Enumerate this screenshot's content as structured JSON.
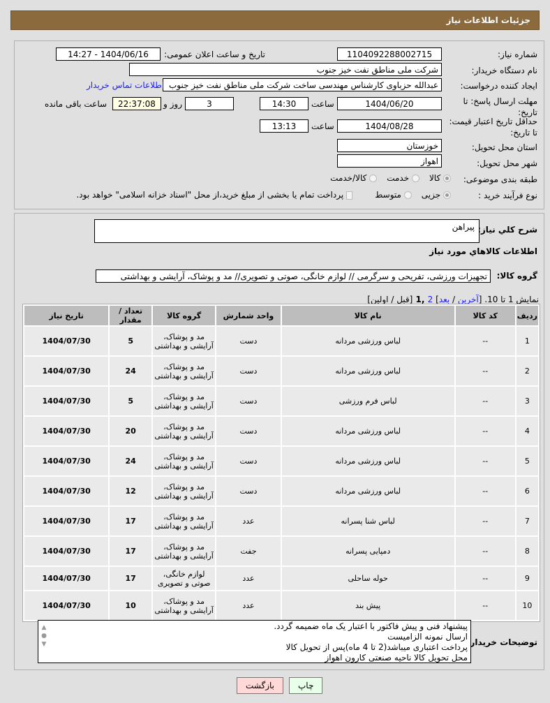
{
  "header": {
    "title": "جزئیات اطلاعات نیاز"
  },
  "form": {
    "need_number_label": "شماره نیاز:",
    "need_number": "1104092288002715",
    "announce_label": "تاریخ و ساعت اعلان عمومی:",
    "announce_value": "1404/06/16 - 14:27",
    "buyer_label": "نام دستگاه خریدار:",
    "buyer_value": "شرکت ملی مناطق نفت خیز جنوب",
    "creator_label": "ایجاد کننده درخواست:",
    "creator_value": "عبدالله حزباوی کارشناس مهندسی ساخت شرکت ملی مناطق نفت خیز جنوب",
    "contact_link": "اطلاعات تماس خریدار",
    "deadline_label": "مهلت ارسال پاسخ: تا تاریخ:",
    "deadline_date": "1404/06/20",
    "time_label": "ساعت",
    "deadline_time": "14:30",
    "days": "3",
    "days_label": "روز و",
    "remaining": "22:37:08",
    "remaining_label": "ساعت باقی مانده",
    "validity_label": "حداقل تاریخ اعتبار قیمت: تا تاریخ:",
    "validity_date": "1404/08/28",
    "validity_time": "13:13",
    "province_label": "استان محل تحویل:",
    "province": "خوزستان",
    "city_label": "شهر محل تحویل:",
    "city": "اهواز",
    "category_label": "طبقه بندی موضوعی:",
    "category_options": [
      "کالا",
      "خدمت",
      "کالا/خدمت"
    ],
    "process_label": "نوع فرآیند خرید :",
    "process_options": [
      "جزیی",
      "متوسط"
    ],
    "payment_note": "پرداخت تمام یا بخشی از مبلغ خرید،از محل \"اسناد خزانه اسلامی\" خواهد بود."
  },
  "summary": {
    "label": "شرح کلي نياز:",
    "value": "پیراهن"
  },
  "goods": {
    "title": "اطلاعات كالاهاي مورد نياز",
    "group_label": "گروه کالا:",
    "group_value": "تجهیزات ورزشی، تفریحی و سرگرمی // لوازم خانگی، صوتی و تصویری// مد و پوشاک، آرایشی و بهداشتی"
  },
  "pager": {
    "prefix": "نمایش 1 تا 10. [",
    "last": "آخرین",
    "sep": " / ",
    "next": "بعد",
    "close": "]",
    "page2": "2",
    "current": " ,1 ",
    "rest": "[قبل / اولین]"
  },
  "table": {
    "headers": [
      "ردیف",
      "کد کالا",
      "نام کالا",
      "واحد شمارش",
      "گروه کالا",
      "تعداد / مقدار",
      "تاریخ نیاز"
    ],
    "rows": [
      [
        "1",
        "--",
        "لباس ورزشی مردانه",
        "دست",
        "مد و پوشاک، آرایشی و بهداشتی",
        "5",
        "1404/07/30"
      ],
      [
        "2",
        "--",
        "لباس ورزشی مردانه",
        "دست",
        "مد و پوشاک، آرایشی و بهداشتی",
        "24",
        "1404/07/30"
      ],
      [
        "3",
        "--",
        "لباس فرم ورزشی",
        "دست",
        "مد و پوشاک، آرایشی و بهداشتی",
        "5",
        "1404/07/30"
      ],
      [
        "4",
        "--",
        "لباس ورزشی مردانه",
        "دست",
        "مد و پوشاک، آرایشی و بهداشتی",
        "20",
        "1404/07/30"
      ],
      [
        "5",
        "--",
        "لباس ورزشی مردانه",
        "دست",
        "مد و پوشاک، آرایشی و بهداشتی",
        "24",
        "1404/07/30"
      ],
      [
        "6",
        "--",
        "لباس ورزشی مردانه",
        "دست",
        "مد و پوشاک، آرایشی و بهداشتی",
        "12",
        "1404/07/30"
      ],
      [
        "7",
        "--",
        "لباس شنا پسرانه",
        "عدد",
        "مد و پوشاک، آرایشی و بهداشتی",
        "17",
        "1404/07/30"
      ],
      [
        "8",
        "--",
        "دمپایی پسرانه",
        "جفت",
        "مد و پوشاک، آرایشی و بهداشتی",
        "17",
        "1404/07/30"
      ],
      [
        "9",
        "--",
        "حوله ساحلی",
        "عدد",
        "لوازم خانگی، صوتی و تصویری",
        "17",
        "1404/07/30"
      ],
      [
        "10",
        "--",
        "پیش بند",
        "عدد",
        "مد و پوشاک، آرایشی و بهداشتی",
        "10",
        "1404/07/30"
      ]
    ]
  },
  "notes": {
    "label": "توضیحات خریدار:",
    "lines": [
      "پیشنهاد فنی و پیش فاکتور با اعتبار یک ماه ضمیمه گردد.",
      "ارسال نمونه الزامیست",
      "پرداخت اعتباری میباشد(2 تا 4 ماه)پس از تحویل کالا",
      "محل تحویل کالا ناحیه صنعتی کارون اهواز"
    ]
  },
  "buttons": {
    "print": "چاپ",
    "back": "بازگشت"
  },
  "colors": {
    "header": "#8b6a3e",
    "link": "#1a1aff",
    "print_bg": "#e8ffe8",
    "back_bg": "#ffd8d8"
  }
}
